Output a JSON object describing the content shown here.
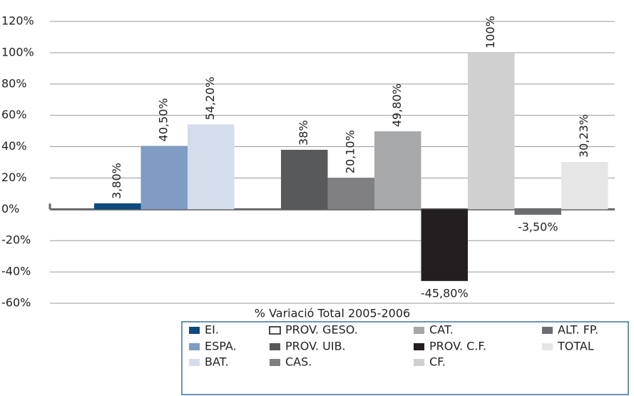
{
  "chart_data": {
    "type": "bar",
    "categories": [
      "% Variació Total 2005-2006"
    ],
    "ylim": [
      -60,
      120
    ],
    "yticks": [
      {
        "value": -60,
        "label": "-60%"
      },
      {
        "value": -40,
        "label": "-40%"
      },
      {
        "value": -20,
        "label": "-20%"
      },
      {
        "value": 0,
        "label": "0%"
      },
      {
        "value": 20,
        "label": "20%"
      },
      {
        "value": 40,
        "label": "40%"
      },
      {
        "value": 60,
        "label": "60%"
      },
      {
        "value": 80,
        "label": "80%"
      },
      {
        "value": 100,
        "label": "100%"
      },
      {
        "value": 120,
        "label": "120%"
      }
    ],
    "grid": true,
    "legend": "bottom",
    "series": [
      {
        "name": "EI.",
        "color": "#0d4a7e",
        "values": [
          3.8
        ],
        "value_labels": [
          "3,80%"
        ]
      },
      {
        "name": "ESPA.",
        "color": "#7f9cc4",
        "values": [
          40.5
        ],
        "value_labels": [
          "40,50%"
        ]
      },
      {
        "name": "BAT.",
        "color": "#d5dcec",
        "values": [
          54.2
        ],
        "value_labels": [
          "54,20%"
        ]
      },
      {
        "name": "PROV. GESO.",
        "color": "#ffffff",
        "values": [
          null
        ],
        "value_labels": [
          null
        ]
      },
      {
        "name": "PROV. UIB.",
        "color": "#58595b",
        "values": [
          38
        ],
        "value_labels": [
          "38%"
        ]
      },
      {
        "name": "CAS.",
        "color": "#808082",
        "values": [
          20.1
        ],
        "value_labels": [
          "20,10%"
        ]
      },
      {
        "name": "CAT.",
        "color": "#a7a8aa",
        "values": [
          49.8
        ],
        "value_labels": [
          "49,80%"
        ]
      },
      {
        "name": "PROV. C.F.",
        "color": "#231f20",
        "values": [
          -45.8
        ],
        "value_labels": [
          "-45,80%"
        ]
      },
      {
        "name": "CF.",
        "color": "#d0d0d1",
        "values": [
          100
        ],
        "value_labels": [
          "100%"
        ]
      },
      {
        "name": "ALT. FP.",
        "color": "#6d6e71",
        "values": [
          -3.5
        ],
        "value_labels": [
          "-3,50%"
        ]
      },
      {
        "name": "TOTAL",
        "color": "#e6e6e7",
        "values": [
          30.23
        ],
        "value_labels": [
          "30,23%"
        ]
      }
    ]
  }
}
